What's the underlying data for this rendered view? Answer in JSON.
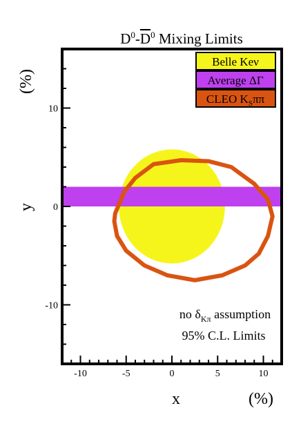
{
  "chart_data": {
    "type": "scatter",
    "title": {
      "base": "D",
      "sup1": "0",
      "dash": "-",
      "bar_letter": "D",
      "sup2": "0",
      "rest": " Mixing Limits"
    },
    "xlabel": {
      "var": "x",
      "unit": "(%)"
    },
    "ylabel": {
      "var": "y",
      "unit": "(%)"
    },
    "xlim": [
      -12,
      12
    ],
    "ylim": [
      -16,
      16
    ],
    "xticks": [
      -10,
      -5,
      0,
      5,
      10
    ],
    "yticks": [
      -10,
      0,
      10
    ],
    "grid": false,
    "legend_position": "top-right",
    "legend": [
      {
        "id": "belle",
        "label": "Belle Keν",
        "color": "#f5f51c"
      },
      {
        "id": "average",
        "label": "Average ΔΓ",
        "color": "#bf40ef"
      },
      {
        "id": "cleo",
        "label_main": "CLEO K",
        "label_sub": "S",
        "label_tail": "ππ",
        "color": "#d95411"
      }
    ],
    "series": [
      {
        "id": "belle",
        "region": "circle",
        "center": [
          0,
          0
        ],
        "radius": 5.8
      },
      {
        "id": "average",
        "region": "band",
        "y_range": [
          0,
          2
        ]
      },
      {
        "id": "cleo",
        "region": "contour",
        "x": [
          -6.2,
          -5.2,
          -4.0,
          -2.0,
          1.0,
          4.0,
          6.5,
          9.0,
          10.5,
          11.0,
          10.5,
          9.5,
          8.0,
          5.5,
          2.5,
          -0.5,
          -3.0,
          -5.0,
          -6.0,
          -6.3,
          -6.2
        ],
        "y": [
          -0.7,
          1.5,
          2.9,
          4.3,
          4.7,
          4.6,
          4.0,
          2.3,
          0.7,
          -1.0,
          -3.0,
          -4.8,
          -6.0,
          -7.0,
          -7.5,
          -7.0,
          -6.0,
          -4.5,
          -3.0,
          -1.5,
          -0.7
        ]
      }
    ],
    "annotations": [
      {
        "id": "delta-note",
        "pre": "no ",
        "greek": "δ",
        "sub": "Kπ",
        "post": " assumption"
      },
      {
        "id": "cl-note",
        "text": "95% C.L. Limits"
      }
    ]
  }
}
